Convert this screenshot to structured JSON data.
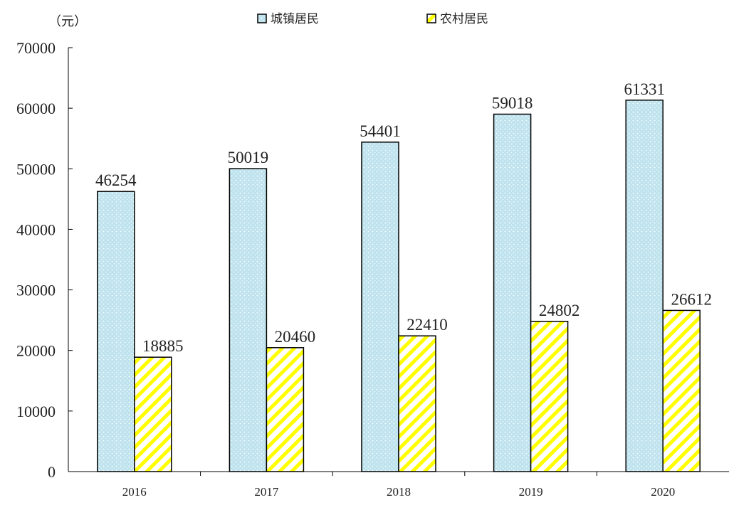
{
  "chart_data": {
    "type": "bar",
    "unit_label": "（元）",
    "categories": [
      "2016",
      "2017",
      "2018",
      "2019",
      "2020"
    ],
    "series": [
      {
        "name": "城镇居民",
        "values": [
          46254,
          50019,
          54401,
          59018,
          61331
        ],
        "color": "#bfe3ee",
        "pattern": "dots"
      },
      {
        "name": "农村居民",
        "values": [
          18885,
          20460,
          22410,
          24802,
          26612
        ],
        "color": "#ffff00",
        "pattern": "diagonal-stripes"
      }
    ],
    "ylim": [
      0,
      70000
    ],
    "yticks": [
      0,
      10000,
      20000,
      30000,
      40000,
      50000,
      60000,
      70000
    ],
    "legend_position": "top",
    "grid": false,
    "xlabel": "",
    "ylabel": ""
  }
}
